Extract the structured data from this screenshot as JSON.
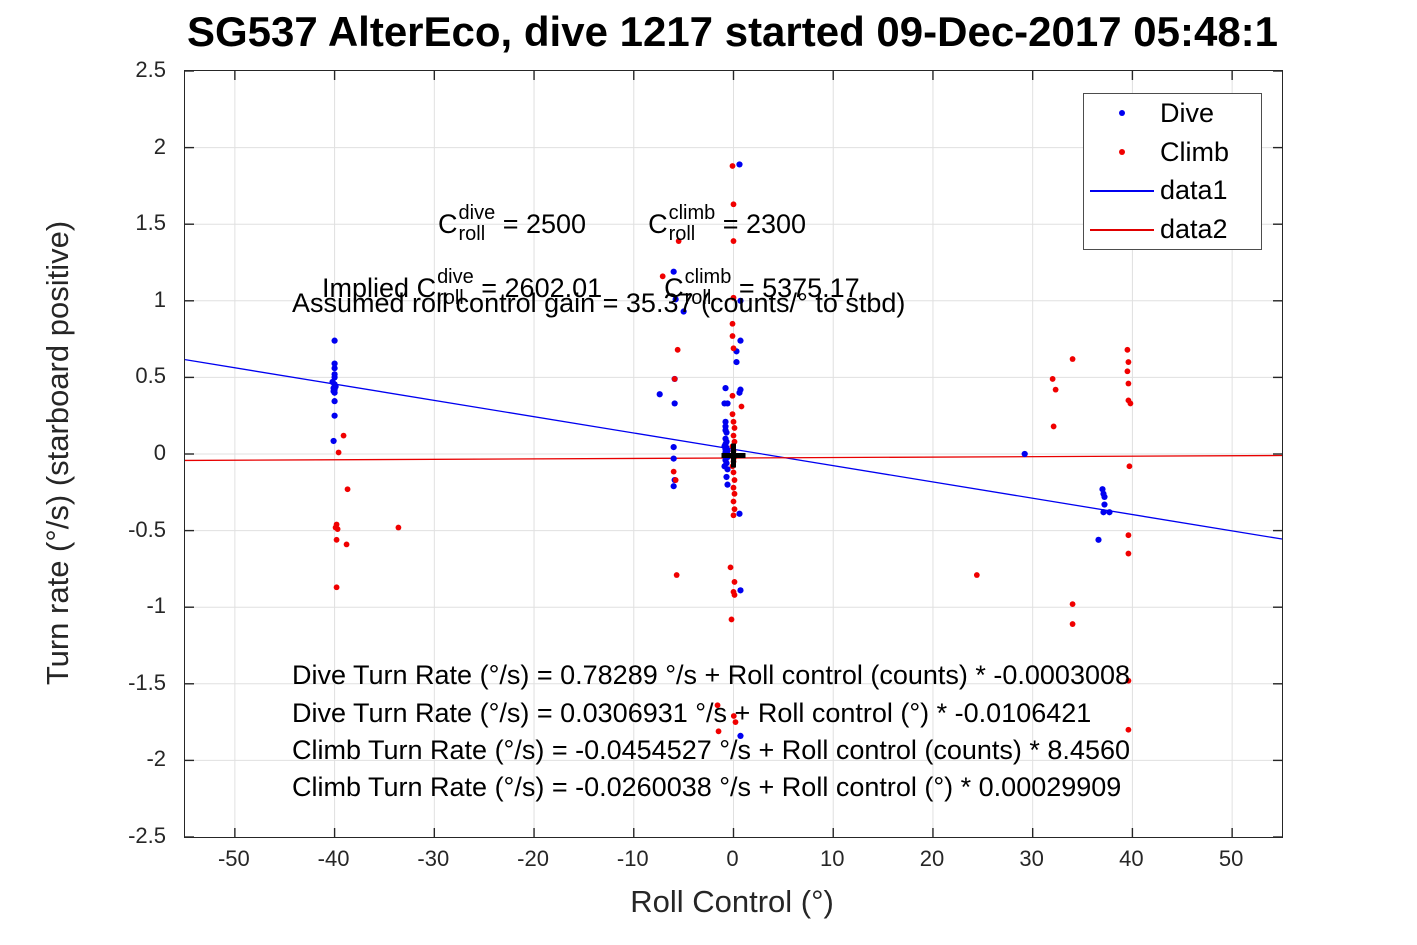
{
  "title": "SG537 AlterEco, dive 1217 started 09-Dec-2017 05:48:1",
  "axis": {
    "x_label": "Roll Control (°)",
    "y_label": "Turn rate (°/s) (starboard positive)",
    "x_tick_labels": [
      "-50",
      "-40",
      "-30",
      "-20",
      "-10",
      "0",
      "10",
      "20",
      "30",
      "40",
      "50"
    ],
    "y_tick_labels": [
      "2.5",
      "2",
      "1.5",
      "1",
      "0.5",
      "0",
      "-0.5",
      "-1",
      "-1.5",
      "-2",
      "-2.5"
    ]
  },
  "legend": {
    "items": [
      {
        "label": "Dive",
        "marker": "dot",
        "color": "#0000f0"
      },
      {
        "label": "Climb",
        "marker": "dot",
        "color": "#f00000"
      },
      {
        "label": "data1",
        "marker": "line",
        "color": "#0000f0"
      },
      {
        "label": "data2",
        "marker": "line",
        "color": "#e00000"
      }
    ]
  },
  "annotations": {
    "row1": {
      "c1": "C",
      "sup1": "dive",
      "sub1": "roll",
      "eq1": " = 2500",
      "c2": "C",
      "sup2": "climb",
      "sub2": "roll",
      "eq2": " = 2300"
    },
    "row2": {
      "prefix": "Implied ",
      "c1": "C",
      "sup1": "dive",
      "sub1": "roll",
      "eq1": " = 2602.01",
      "c2": "C",
      "sup2": "climb",
      "sub2": "roll",
      "eq2": " = 5375.17"
    },
    "row3": "Assumed roll control gain = 35.37 (counts/° to stbd)"
  },
  "equations": [
    "Dive Turn Rate (°/s) = 0.78289 °/s + Roll control (counts) * -0.0003008",
    "Dive Turn Rate (°/s) = 0.0306931 °/s + Roll control (°) * -0.0106421",
    "Climb Turn Rate (°/s) = -0.0454527 °/s + Roll control (counts) * 8.4560",
    "Climb Turn Rate (°/s) = -0.0260038 °/s + Roll control (°) * 0.00029909"
  ],
  "chart_data": {
    "type": "scatter",
    "xlabel": "Roll Control (°)",
    "ylabel": "Turn rate (°/s) (starboard positive)",
    "xlim": [
      -55,
      55
    ],
    "ylim": [
      -2.5,
      2.5
    ],
    "x_ticks": [
      -50,
      -40,
      -30,
      -20,
      -10,
      0,
      10,
      20,
      30,
      40,
      50
    ],
    "y_ticks": [
      -2.5,
      -2,
      -1.5,
      -1,
      -0.5,
      0,
      0.5,
      1,
      1.5,
      2,
      2.5
    ],
    "grid": true,
    "grid_color": "#e0e0e0",
    "axis_color": "#262626",
    "legend_position": "top-right",
    "series": [
      {
        "name": "Dive",
        "color": "#0000f0",
        "marker_radius": 3.1,
        "points": [
          [
            -40,
            0.74
          ],
          [
            -40,
            0.59
          ],
          [
            -40,
            0.56
          ],
          [
            -40,
            0.52
          ],
          [
            -40,
            0.5
          ],
          [
            -40.2,
            0.47
          ],
          [
            -40,
            0.455
          ],
          [
            -39.9,
            0.44
          ],
          [
            -40.1,
            0.43
          ],
          [
            -40,
            0.42
          ],
          [
            -40.1,
            0.41
          ],
          [
            -40,
            0.4
          ],
          [
            -40,
            0.345
          ],
          [
            -40,
            0.25
          ],
          [
            -40.1,
            0.085
          ],
          [
            -6.0,
            1.19
          ],
          [
            -5.8,
            1.01
          ],
          [
            -5.0,
            0.93
          ],
          [
            -7.4,
            0.39
          ],
          [
            -5.9,
            0.49
          ],
          [
            -5.9,
            0.33
          ],
          [
            -6.0,
            0.045
          ],
          [
            -6.0,
            -0.03
          ],
          [
            -5.9,
            -0.17
          ],
          [
            -6.0,
            -0.21
          ],
          [
            0.6,
            1.89
          ],
          [
            0.7,
            1.0
          ],
          [
            0.7,
            0.74
          ],
          [
            0.3,
            0.67
          ],
          [
            0.3,
            0.6
          ],
          [
            -0.8,
            0.43
          ],
          [
            0.7,
            0.42
          ],
          [
            0.6,
            0.4
          ],
          [
            -0.9,
            0.33
          ],
          [
            -0.6,
            0.33
          ],
          [
            -0.8,
            0.21
          ],
          [
            -0.8,
            0.18
          ],
          [
            -0.8,
            0.155
          ],
          [
            -0.7,
            0.14
          ],
          [
            -0.8,
            0.1
          ],
          [
            -0.7,
            0.08
          ],
          [
            -0.8,
            0.065
          ],
          [
            -0.9,
            0.05
          ],
          [
            -0.7,
            0.04
          ],
          [
            -0.8,
            0.03
          ],
          [
            -0.6,
            0.02
          ],
          [
            -0.8,
            0.01
          ],
          [
            -0.7,
            0.0
          ],
          [
            -0.6,
            -0.02
          ],
          [
            -0.8,
            -0.04
          ],
          [
            -0.7,
            -0.06
          ],
          [
            -0.9,
            -0.08
          ],
          [
            -0.6,
            -0.1
          ],
          [
            -0.7,
            -0.15
          ],
          [
            -0.6,
            -0.2
          ],
          [
            0.6,
            -0.39
          ],
          [
            0.7,
            -0.89
          ],
          [
            0.7,
            -1.84
          ],
          [
            29.2,
            0.0
          ],
          [
            37.0,
            -0.23
          ],
          [
            37.1,
            -0.26
          ],
          [
            37.2,
            -0.28
          ],
          [
            37.2,
            -0.33
          ],
          [
            37.1,
            -0.38
          ],
          [
            37.7,
            -0.38
          ],
          [
            36.6,
            -0.56
          ]
        ]
      },
      {
        "name": "Climb",
        "color": "#f00000",
        "marker_radius": 2.9,
        "points": [
          [
            -39.1,
            0.12
          ],
          [
            -39.6,
            0.01
          ],
          [
            -38.7,
            -0.23
          ],
          [
            -39.8,
            -0.46
          ],
          [
            -39.9,
            -0.48
          ],
          [
            -39.7,
            -0.49
          ],
          [
            -39.8,
            -0.56
          ],
          [
            -38.8,
            -0.59
          ],
          [
            -39.8,
            -0.87
          ],
          [
            -33.6,
            -0.48
          ],
          [
            -5.5,
            1.39
          ],
          [
            -7.1,
            1.16
          ],
          [
            -5.6,
            0.68
          ],
          [
            -5.9,
            0.49
          ],
          [
            -6.0,
            -0.115
          ],
          [
            -5.8,
            -0.17
          ],
          [
            -5.7,
            -0.79
          ],
          [
            -0.1,
            1.88
          ],
          [
            0.0,
            1.63
          ],
          [
            0.0,
            1.39
          ],
          [
            0.0,
            1.02
          ],
          [
            -0.1,
            0.85
          ],
          [
            -0.1,
            0.77
          ],
          [
            0.0,
            0.69
          ],
          [
            -0.1,
            0.38
          ],
          [
            0.8,
            0.31
          ],
          [
            -0.1,
            0.26
          ],
          [
            0.0,
            0.21
          ],
          [
            0.1,
            0.17
          ],
          [
            0.0,
            0.12
          ],
          [
            0.1,
            0.08
          ],
          [
            -0.1,
            0.05
          ],
          [
            0.0,
            0.02
          ],
          [
            0.1,
            -0.02
          ],
          [
            0.0,
            -0.05
          ],
          [
            -0.1,
            -0.08
          ],
          [
            0.0,
            -0.12
          ],
          [
            0.1,
            -0.17
          ],
          [
            0.0,
            -0.22
          ],
          [
            0.1,
            -0.26
          ],
          [
            0.0,
            -0.31
          ],
          [
            0.1,
            -0.36
          ],
          [
            0.0,
            -0.4
          ],
          [
            -0.3,
            -0.74
          ],
          [
            0.1,
            -0.835
          ],
          [
            0.0,
            -0.9
          ],
          [
            0.1,
            -0.92
          ],
          [
            -0.2,
            -1.08
          ],
          [
            -1.6,
            -1.64
          ],
          [
            0.03,
            -1.71
          ],
          [
            0.2,
            -1.75
          ],
          [
            -1.5,
            -1.81
          ],
          [
            24.4,
            -0.79
          ],
          [
            32.0,
            0.49
          ],
          [
            32.3,
            0.42
          ],
          [
            32.1,
            0.18
          ],
          [
            34.0,
            0.62
          ],
          [
            34.0,
            -0.98
          ],
          [
            34.0,
            -1.11
          ],
          [
            39.5,
            0.68
          ],
          [
            39.6,
            0.6
          ],
          [
            39.5,
            0.54
          ],
          [
            39.6,
            0.46
          ],
          [
            39.6,
            0.35
          ],
          [
            39.8,
            0.33
          ],
          [
            39.7,
            -0.08
          ],
          [
            39.6,
            -0.53
          ],
          [
            39.6,
            -0.65
          ],
          [
            39.6,
            -1.48
          ],
          [
            39.6,
            -1.8
          ]
        ]
      }
    ],
    "lines": [
      {
        "name": "data1",
        "color": "#0000f0",
        "width": 1.3,
        "points": [
          [
            -55,
            0.616
          ],
          [
            55,
            -0.555
          ]
        ]
      },
      {
        "name": "data2",
        "color": "#e80000",
        "width": 1.3,
        "points": [
          [
            -55,
            -0.042
          ],
          [
            55,
            -0.01
          ]
        ]
      }
    ],
    "markers": [
      {
        "name": "origin-cross",
        "shape": "plus",
        "x": 0,
        "y": -0.01,
        "size": 24,
        "stroke": 5,
        "color": "#000000"
      }
    ]
  }
}
